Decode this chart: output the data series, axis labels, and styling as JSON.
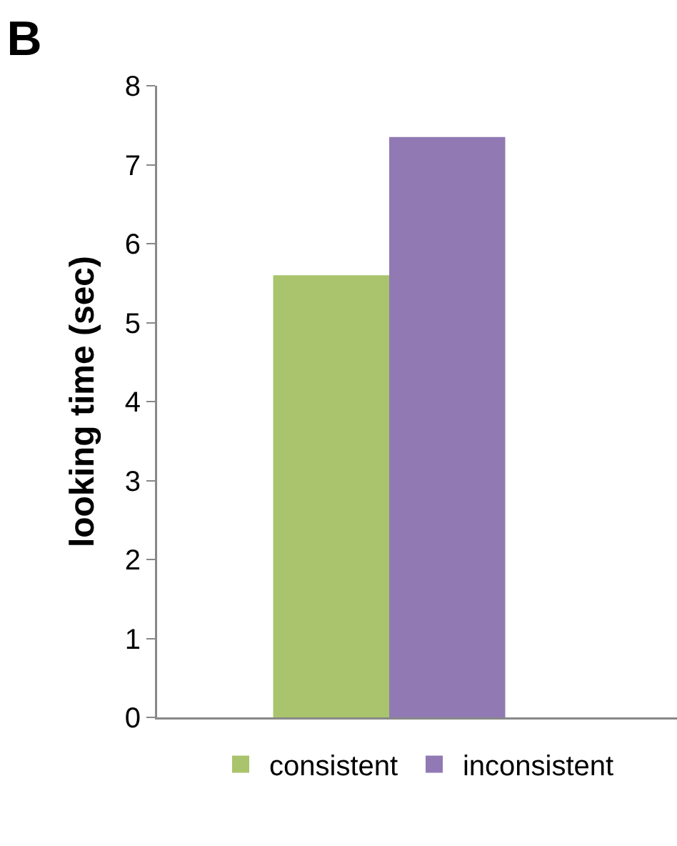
{
  "chart_data": {
    "type": "bar",
    "title": "B",
    "ylabel": "looking time (sec)",
    "categories": [
      null
    ],
    "series": [
      {
        "name": "consistent",
        "color": "#a9c46c",
        "values": [
          5.6
        ]
      },
      {
        "name": "inconsistent",
        "color": "#917ab4",
        "values": [
          7.35
        ]
      }
    ],
    "ylim": [
      0,
      8
    ],
    "yticks": [
      0,
      1,
      2,
      3,
      4,
      5,
      6,
      7,
      8
    ],
    "grid": false,
    "legend": "bottom"
  }
}
